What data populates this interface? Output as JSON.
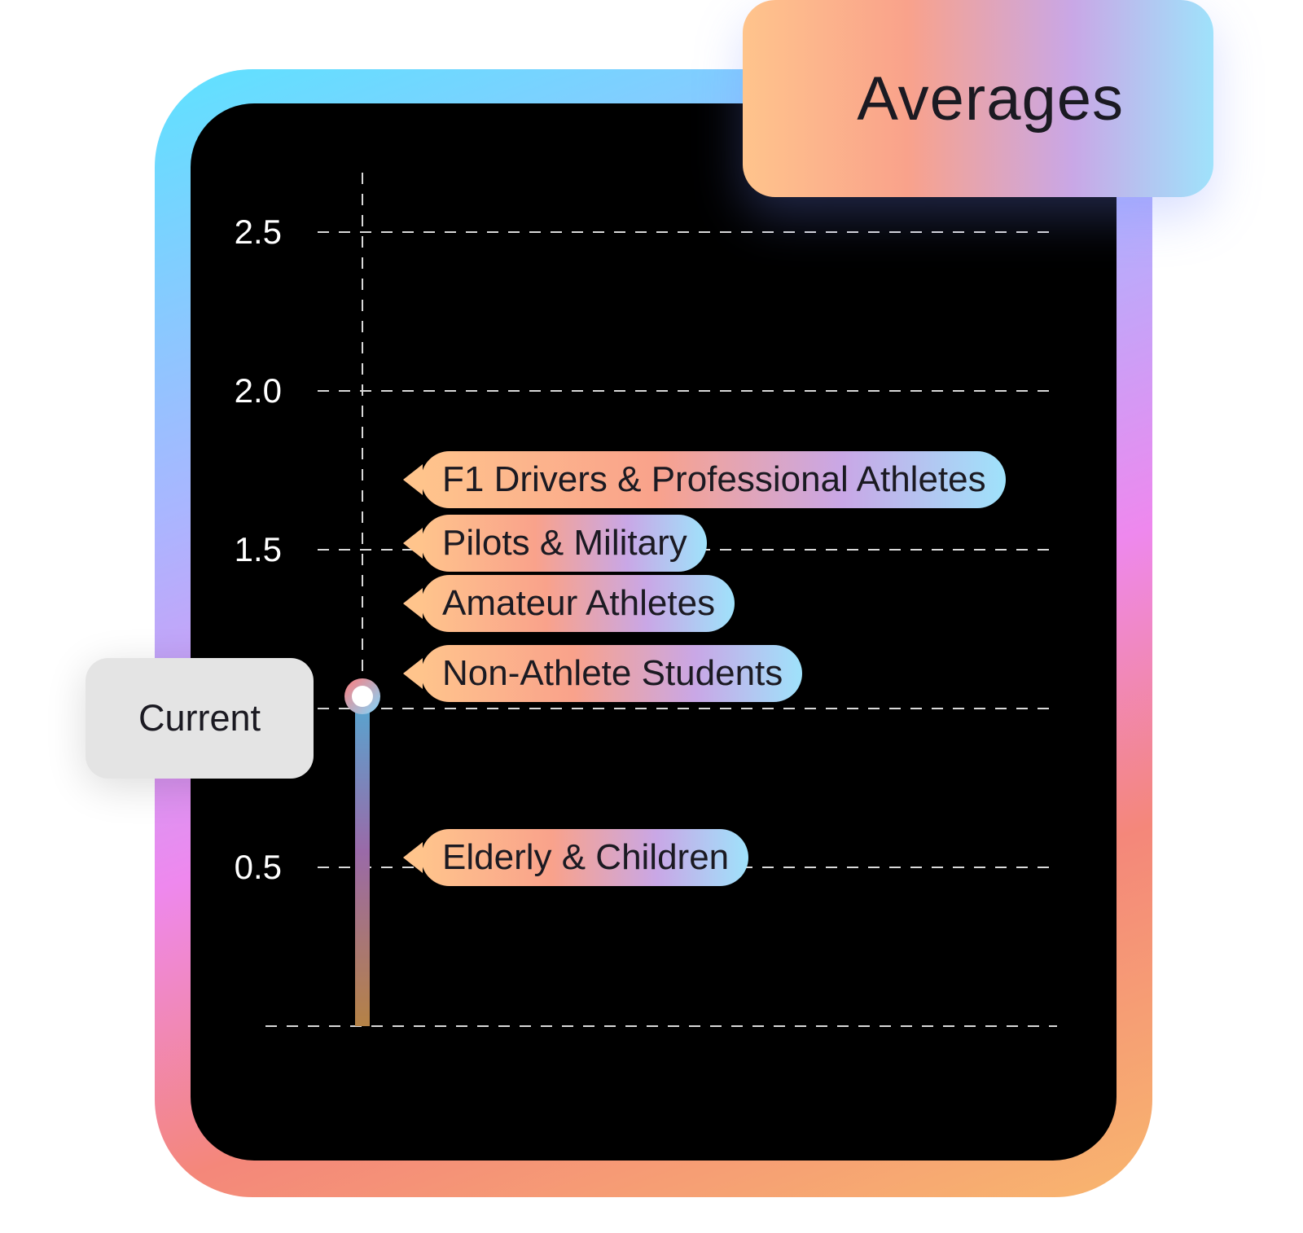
{
  "title": "Averages",
  "current_label": "Current",
  "colors": {
    "background": "#000000",
    "gridline": "#d9d9d9",
    "marker_ring_start": "#ff7e7e",
    "marker_ring_end": "#7fd7ff",
    "stem_top": "#5aa3ce",
    "stem_bottom": "#b58246"
  },
  "chart_data": {
    "type": "bar",
    "ylim": [
      0,
      2.7
    ],
    "yticks": [
      {
        "value": 2.5,
        "label": "2.5"
      },
      {
        "value": 2.0,
        "label": "2.0"
      },
      {
        "value": 1.5,
        "label": "1.5"
      },
      {
        "value": 0.5,
        "label": "0.5"
      }
    ],
    "grid": true,
    "current_value": 1.0,
    "references": [
      {
        "label": "F1 Drivers & Professional Athletes",
        "value": 1.72
      },
      {
        "label": "Pilots & Military",
        "value": 1.52
      },
      {
        "label": "Amateur Athletes",
        "value": 1.33
      },
      {
        "label": "Non-Athlete Students",
        "value": 1.11
      },
      {
        "label": "Elderly & Children",
        "value": 0.53
      }
    ]
  }
}
